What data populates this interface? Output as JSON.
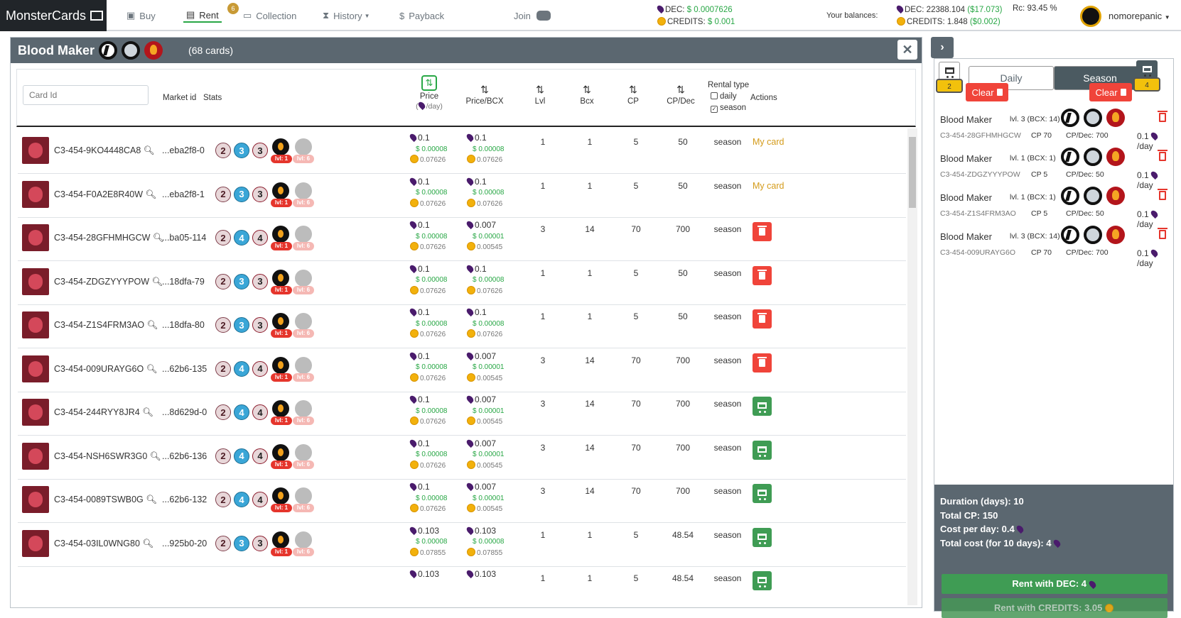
{
  "nav": {
    "brand": "MonsterCards",
    "items": [
      "Buy",
      "Rent",
      "Collection",
      "History",
      "Payback"
    ],
    "rent_count": "6",
    "join": "Join"
  },
  "prices": {
    "dec_label": "DEC: ",
    "dec_value": "$ 0.0007626",
    "credits_label": "CREDITS: ",
    "credits_value": "$ 0.001"
  },
  "balances": {
    "label": "Your balances:",
    "dec": "DEC: 22388.104 ",
    "dec_usd": "($17.073)",
    "credits": "CREDITS: 1.848 ",
    "credits_usd": "($0.002)",
    "rc": "Rc: 93.45 %",
    "user": "nomorepanic"
  },
  "panel": {
    "title": "Blood Maker",
    "count": "(68 cards)",
    "close": "✕"
  },
  "table_headers": {
    "card_id_placeholder": "Card Id",
    "market_id": "Market id",
    "stats": "Stats",
    "price": "Price",
    "price_sub": "/day)",
    "price_bcx": "Price/BCX",
    "lvl": "Lvl",
    "bcx": "Bcx",
    "cp": "CP",
    "cp_dec": "CP/Dec",
    "rental_type": "Rental type",
    "daily": "daily",
    "season": "season",
    "actions": "Actions"
  },
  "rows": [
    {
      "id": "C3-454-9KO4448CA8",
      "market": "...eba2f8-0",
      "s1": "2",
      "s2": "3",
      "s3": "3",
      "p": "0.1",
      "pu": "$ 0.00008",
      "pc": "0.07626",
      "b": "0.1",
      "bu": "$ 0.00008",
      "bc": "0.07626",
      "lvl": "1",
      "bcx": "1",
      "cp": "5",
      "cpd": "50",
      "rt": "season",
      "action": "My card"
    },
    {
      "id": "C3-454-F0A2E8R40W",
      "market": "...eba2f8-1",
      "s1": "2",
      "s2": "3",
      "s3": "3",
      "p": "0.1",
      "pu": "$ 0.00008",
      "pc": "0.07626",
      "b": "0.1",
      "bu": "$ 0.00008",
      "bc": "0.07626",
      "lvl": "1",
      "bcx": "1",
      "cp": "5",
      "cpd": "50",
      "rt": "season",
      "action": "My card"
    },
    {
      "id": "C3-454-28GFHMHGCW",
      "market": "...ba05-114",
      "s1": "2",
      "s2": "4",
      "s3": "4",
      "p": "0.1",
      "pu": "$ 0.00008",
      "pc": "0.07626",
      "b": "0.007",
      "bu": "$ 0.00001",
      "bc": "0.00545",
      "lvl": "3",
      "bcx": "14",
      "cp": "70",
      "cpd": "700",
      "rt": "season",
      "action": "delete"
    },
    {
      "id": "C3-454-ZDGZYYYPOW",
      "market": "...18dfa-79",
      "s1": "2",
      "s2": "3",
      "s3": "3",
      "p": "0.1",
      "pu": "$ 0.00008",
      "pc": "0.07626",
      "b": "0.1",
      "bu": "$ 0.00008",
      "bc": "0.07626",
      "lvl": "1",
      "bcx": "1",
      "cp": "5",
      "cpd": "50",
      "rt": "season",
      "action": "delete"
    },
    {
      "id": "C3-454-Z1S4FRM3AO",
      "market": "...18dfa-80",
      "s1": "2",
      "s2": "3",
      "s3": "3",
      "p": "0.1",
      "pu": "$ 0.00008",
      "pc": "0.07626",
      "b": "0.1",
      "bu": "$ 0.00008",
      "bc": "0.07626",
      "lvl": "1",
      "bcx": "1",
      "cp": "5",
      "cpd": "50",
      "rt": "season",
      "action": "delete"
    },
    {
      "id": "C3-454-009URAYG6O",
      "market": "...62b6-135",
      "s1": "2",
      "s2": "4",
      "s3": "4",
      "p": "0.1",
      "pu": "$ 0.00008",
      "pc": "0.07626",
      "b": "0.007",
      "bu": "$ 0.00001",
      "bc": "0.00545",
      "lvl": "3",
      "bcx": "14",
      "cp": "70",
      "cpd": "700",
      "rt": "season",
      "action": "delete"
    },
    {
      "id": "C3-454-244RYY8JR4",
      "market": "...8d629d-0",
      "s1": "2",
      "s2": "4",
      "s3": "4",
      "p": "0.1",
      "pu": "$ 0.00008",
      "pc": "0.07626",
      "b": "0.007",
      "bu": "$ 0.00001",
      "bc": "0.00545",
      "lvl": "3",
      "bcx": "14",
      "cp": "70",
      "cpd": "700",
      "rt": "season",
      "action": "cart"
    },
    {
      "id": "C3-454-NSH6SWR3G0",
      "market": "...62b6-136",
      "s1": "2",
      "s2": "4",
      "s3": "4",
      "p": "0.1",
      "pu": "$ 0.00008",
      "pc": "0.07626",
      "b": "0.007",
      "bu": "$ 0.00001",
      "bc": "0.00545",
      "lvl": "3",
      "bcx": "14",
      "cp": "70",
      "cpd": "700",
      "rt": "season",
      "action": "cart"
    },
    {
      "id": "C3-454-0089TSWB0G",
      "market": "...62b6-132",
      "s1": "2",
      "s2": "4",
      "s3": "4",
      "p": "0.1",
      "pu": "$ 0.00008",
      "pc": "0.07626",
      "b": "0.007",
      "bu": "$ 0.00001",
      "bc": "0.00545",
      "lvl": "3",
      "bcx": "14",
      "cp": "70",
      "cpd": "700",
      "rt": "season",
      "action": "cart"
    },
    {
      "id": "C3-454-03IL0WNG80",
      "market": "...925b0-20",
      "s1": "2",
      "s2": "3",
      "s3": "3",
      "p": "0.103",
      "pu": "$ 0.00008",
      "pc": "0.07855",
      "b": "0.103",
      "bu": "$ 0.00008",
      "bc": "0.07855",
      "lvl": "1",
      "bcx": "1",
      "cp": "5",
      "cpd": "48.54",
      "rt": "season",
      "action": "cart"
    },
    {
      "id": "",
      "market": "",
      "s1": "",
      "s2": "",
      "s3": "",
      "p": "0.103",
      "pu": "",
      "pc": "",
      "b": "0.103",
      "bu": "",
      "bc": "",
      "lvl": "1",
      "bcx": "1",
      "cp": "5",
      "cpd": "48.54",
      "rt": "season",
      "action": "cart"
    }
  ],
  "badges": {
    "lvl1": "lvl: 1",
    "lvl6": "lvl: 6"
  },
  "sidebar": {
    "toggle": "›",
    "left_count": "2",
    "right_count": "4",
    "tab_daily": "Daily",
    "tab_season": "Season",
    "clear": "Clear",
    "items": [
      {
        "name": "Blood Maker",
        "lvl": "lvl. 3 (BCX: 14)",
        "id": "C3-454-28GFHMHGCW",
        "cp": "CP 70",
        "cpd": "CP/Dec: 700",
        "price": "0.1",
        "per": "/day"
      },
      {
        "name": "Blood Maker",
        "lvl": "lvl. 1 (BCX: 1)",
        "id": "C3-454-ZDGZYYYPOW",
        "cp": "CP 5",
        "cpd": "CP/Dec: 50",
        "price": "0.1",
        "per": "/day"
      },
      {
        "name": "Blood Maker",
        "lvl": "lvl. 1 (BCX: 1)",
        "id": "C3-454-Z1S4FRM3AO",
        "cp": "CP 5",
        "cpd": "CP/Dec: 50",
        "price": "0.1",
        "per": "/day"
      },
      {
        "name": "Blood Maker",
        "lvl": "lvl. 3 (BCX: 14)",
        "id": "C3-454-009URAYG6O",
        "cp": "CP 70",
        "cpd": "CP/Dec: 700",
        "price": "0.1",
        "per": "/day"
      }
    ],
    "summary": {
      "duration": "Duration (days):  10",
      "total_cp": "Total CP: 150",
      "cost_per_day": "Cost per day: 0.4",
      "total_cost": "Total cost (for 10 days): 4",
      "rent_dec": "Rent with DEC:  4",
      "rent_credits": "Rent with CREDITS: 3.05"
    }
  }
}
